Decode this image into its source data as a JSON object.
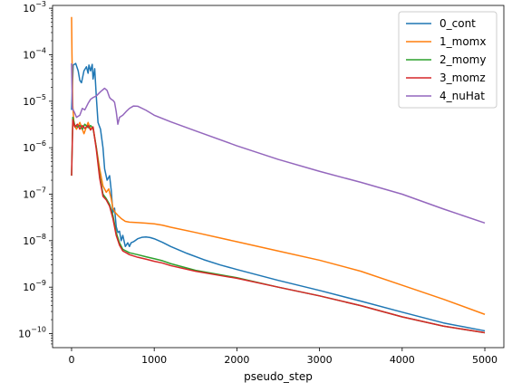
{
  "chart_data": {
    "type": "line",
    "title": "",
    "xlabel": "pseudo_step",
    "ylabel": "",
    "xscale": "linear",
    "yscale": "log",
    "xlim": [
      -230,
      5230
    ],
    "ylim": [
      5e-11,
      0.00115
    ],
    "grid": false,
    "legend_placement": "top-right",
    "x_ticks": [
      0,
      1000,
      2000,
      3000,
      4000,
      5000
    ],
    "x_tick_labels": [
      "0",
      "1000",
      "2000",
      "3000",
      "4000",
      "5000"
    ],
    "y_ticks": [
      1e-10,
      1e-09,
      1e-08,
      1e-07,
      1e-06,
      1e-05,
      0.0001,
      0.001
    ],
    "y_tick_labels": [
      {
        "base": "10",
        "exp": "−10"
      },
      {
        "base": "10",
        "exp": "−9"
      },
      {
        "base": "10",
        "exp": "−8"
      },
      {
        "base": "10",
        "exp": "−7"
      },
      {
        "base": "10",
        "exp": "−6"
      },
      {
        "base": "10",
        "exp": "−5"
      },
      {
        "base": "10",
        "exp": "−4"
      },
      {
        "base": "10",
        "exp": "−3"
      }
    ],
    "series": [
      {
        "name": "0_cont",
        "color": "#1f77b4",
        "x": [
          0,
          20,
          50,
          80,
          100,
          120,
          150,
          180,
          200,
          210,
          230,
          250,
          260,
          280,
          300,
          320,
          350,
          380,
          400,
          430,
          460,
          480,
          500,
          520,
          540,
          560,
          580,
          600,
          620,
          650,
          680,
          700,
          720,
          750,
          800,
          850,
          900,
          950,
          1000,
          1100,
          1200,
          1400,
          1600,
          1800,
          2000,
          2500,
          3000,
          3500,
          4000,
          4500,
          5000
        ],
        "y": [
          6.5e-06,
          6e-05,
          6.5e-05,
          4.5e-05,
          2.8e-05,
          2.5e-05,
          4.5e-05,
          5.5e-05,
          4e-05,
          6e-05,
          4.5e-05,
          6.2e-05,
          3e-05,
          5e-05,
          1.2e-05,
          3.5e-06,
          2.5e-06,
          1e-06,
          3.5e-07,
          2e-07,
          2.5e-07,
          1.2e-07,
          4e-08,
          5e-08,
          2e-08,
          1.5e-08,
          1.6e-08,
          1e-08,
          1.3e-08,
          7.5e-09,
          9e-09,
          7.5e-09,
          9e-09,
          9.5e-09,
          1.1e-08,
          1.18e-08,
          1.2e-08,
          1.17e-08,
          1.1e-08,
          9.2e-09,
          7.5e-09,
          5.3e-09,
          3.9e-09,
          3e-09,
          2.4e-09,
          1.4e-09,
          8.5e-10,
          5e-10,
          2.9e-10,
          1.7e-10,
          1.15e-10
        ]
      },
      {
        "name": "1_momx",
        "color": "#ff7f0e",
        "x": [
          0,
          5,
          15,
          30,
          60,
          100,
          150,
          200,
          230,
          260,
          300,
          340,
          380,
          420,
          450,
          480,
          500,
          530,
          560,
          600,
          650,
          700,
          800,
          900,
          1000,
          1100,
          1200,
          1500,
          2000,
          2500,
          3000,
          3500,
          4000,
          4500,
          5000
        ],
        "y": [
          0.00065,
          0.0001,
          8e-06,
          3e-06,
          2.5e-06,
          3.5e-06,
          2e-06,
          3.5e-06,
          2.5e-06,
          2.8e-06,
          1e-06,
          3.5e-07,
          1.5e-07,
          1.1e-07,
          1.3e-07,
          8e-08,
          5e-08,
          4e-08,
          3.5e-08,
          3e-08,
          2.6e-08,
          2.5e-08,
          2.45e-08,
          2.38e-08,
          2.3e-08,
          2.15e-08,
          1.95e-08,
          1.5e-08,
          9.5e-09,
          6e-09,
          3.8e-09,
          2.2e-09,
          1.1e-09,
          5.5e-10,
          2.6e-10
        ]
      },
      {
        "name": "2_momy",
        "color": "#2ca02c",
        "x": [
          0,
          15,
          40,
          70,
          100,
          130,
          160,
          200,
          230,
          260,
          300,
          340,
          380,
          420,
          460,
          500,
          540,
          580,
          620,
          660,
          700,
          800,
          900,
          1000,
          1100,
          1200,
          1500,
          2000,
          2500,
          3000,
          3500,
          4000,
          4500,
          5000
        ],
        "y": [
          2.5e-07,
          4.5e-06,
          3e-06,
          2.8e-06,
          3e-06,
          2.5e-06,
          3.2e-06,
          2.7e-06,
          3e-06,
          2.6e-06,
          1e-06,
          2.5e-07,
          1e-07,
          8e-08,
          6e-08,
          3.5e-08,
          1.5e-08,
          9e-09,
          6.5e-09,
          6e-09,
          5.5e-09,
          5e-09,
          4.5e-09,
          4.1e-09,
          3.7e-09,
          3.2e-09,
          2.3e-09,
          1.6e-09,
          1e-09,
          6.5e-10,
          4e-10,
          2.3e-10,
          1.45e-10,
          1.05e-10
        ]
      },
      {
        "name": "3_momz",
        "color": "#d62728",
        "x": [
          0,
          15,
          40,
          70,
          100,
          130,
          160,
          200,
          230,
          260,
          300,
          340,
          380,
          420,
          460,
          500,
          540,
          580,
          620,
          660,
          700,
          800,
          900,
          1000,
          1100,
          1200,
          1500,
          2000,
          2500,
          3000,
          3500,
          4000,
          4500,
          5000
        ],
        "y": [
          2.5e-07,
          4e-06,
          2.8e-06,
          3.2e-06,
          2.5e-06,
          3e-06,
          2.6e-06,
          3e-06,
          2.4e-06,
          2.8e-06,
          9e-07,
          2.2e-07,
          9e-08,
          7.5e-08,
          5.5e-08,
          3e-08,
          1.3e-08,
          8e-09,
          6e-09,
          5.5e-09,
          5e-09,
          4.4e-09,
          4e-09,
          3.6e-09,
          3.3e-09,
          2.9e-09,
          2.2e-09,
          1.55e-09,
          1e-09,
          6.5e-10,
          4e-10,
          2.3e-10,
          1.45e-10,
          1.05e-10
        ]
      },
      {
        "name": "4_nuHat",
        "color": "#9467bd",
        "x": [
          0,
          10,
          30,
          60,
          100,
          130,
          160,
          200,
          230,
          260,
          300,
          350,
          400,
          430,
          460,
          480,
          500,
          520,
          540,
          560,
          580,
          620,
          660,
          700,
          750,
          800,
          900,
          1000,
          1200,
          1500,
          2000,
          2500,
          3000,
          3500,
          4000,
          4500,
          5000
        ],
        "y": [
          6.5e-05,
          7e-06,
          6e-06,
          4.5e-06,
          5e-06,
          7e-06,
          6.5e-06,
          9e-06,
          1.1e-05,
          1.2e-05,
          1.3e-05,
          1.6e-05,
          1.9e-05,
          1.7e-05,
          1.2e-05,
          1.1e-05,
          1.05e-05,
          9.5e-06,
          6e-06,
          3.2e-06,
          4.5e-06,
          5e-06,
          6e-06,
          7e-06,
          7.9e-06,
          7.8e-06,
          6.4e-06,
          5e-06,
          3.6e-06,
          2.3e-06,
          1.1e-06,
          5.6e-07,
          3.1e-07,
          1.8e-07,
          1e-07,
          4.8e-08,
          2.4e-08
        ]
      }
    ]
  }
}
